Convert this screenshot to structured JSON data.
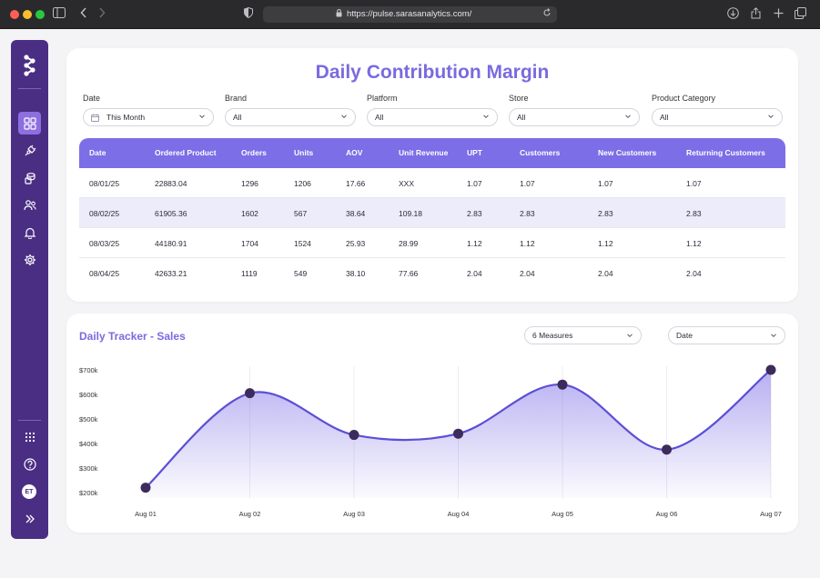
{
  "browser": {
    "url": "https://pulse.sarasanalytics.com/"
  },
  "sidebar": {
    "items": [
      "dashboard-icon",
      "chart-plug-icon",
      "coins-icon",
      "users-icon",
      "bell-icon",
      "gear-icon"
    ],
    "bottom": [
      "apps-grid-icon",
      "help-icon"
    ],
    "avatar_initials": "ET"
  },
  "page": {
    "title": "Daily Contribution Margin"
  },
  "filters": [
    {
      "label": "Date",
      "value": "This Month"
    },
    {
      "label": "Brand",
      "value": "All"
    },
    {
      "label": "Platform",
      "value": "All"
    },
    {
      "label": "Store",
      "value": "All"
    },
    {
      "label": "Product Category",
      "value": "All"
    }
  ],
  "table": {
    "headers": [
      "Date",
      "Ordered Product",
      "Orders",
      "Units",
      "AOV",
      "Unit Revenue",
      "UPT",
      "Customers",
      "New Customers",
      "Returning Customers"
    ],
    "rows": [
      [
        "08/01/25",
        "22883.04",
        "1296",
        "1206",
        "17.66",
        "XXX",
        "1.07",
        "1.07",
        "1.07",
        "1.07"
      ],
      [
        "08/02/25",
        "61905.36",
        "1602",
        "567",
        "38.64",
        "109.18",
        "2.83",
        "2.83",
        "2.83",
        "2.83"
      ],
      [
        "08/03/25",
        "44180.91",
        "1704",
        "1524",
        "25.93",
        "28.99",
        "1.12",
        "1.12",
        "1.12",
        "1.12"
      ],
      [
        "08/04/25",
        "42633.21",
        "1119",
        "549",
        "38.10",
        "77.66",
        "2.04",
        "2.04",
        "2.04",
        "2.04"
      ]
    ]
  },
  "tracker": {
    "title": "Daily Tracker - Sales",
    "measures_select": "6 Measures",
    "dimension_select": "Date"
  },
  "colors": {
    "accent": "#7a6ae0",
    "header": "#7c6ee6",
    "sidebar": "#4a2e84",
    "line": "#5b4fd6",
    "point": "#3d2b5c"
  },
  "chart_data": {
    "type": "area",
    "categories": [
      "Aug 01",
      "Aug 02",
      "Aug 03",
      "Aug 04",
      "Aug 05",
      "Aug 06",
      "Aug 07"
    ],
    "values": [
      220,
      605,
      435,
      440,
      640,
      375,
      700
    ],
    "yticks": [
      "$200k",
      "$300k",
      "$400k",
      "$500k",
      "$600k",
      "$700k"
    ],
    "ylim": [
      200,
      700
    ],
    "grid": "vertical"
  }
}
